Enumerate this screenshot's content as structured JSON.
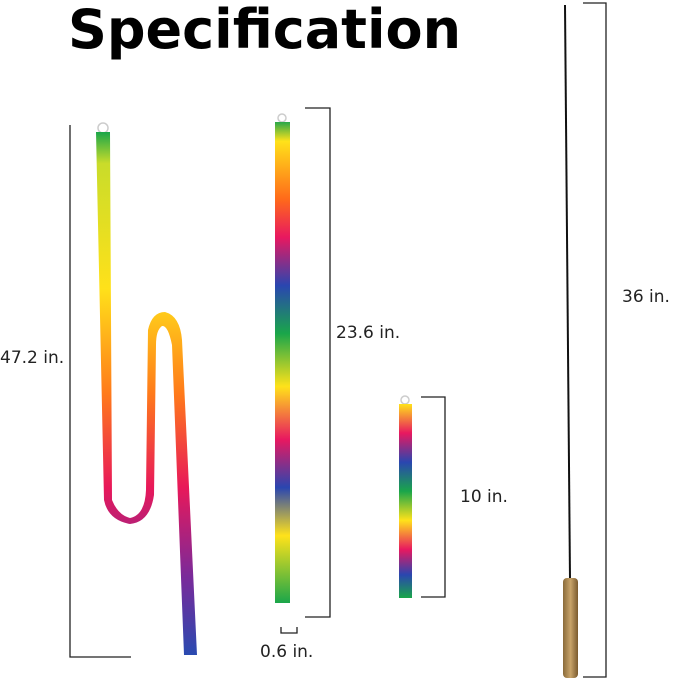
{
  "title": "Specification",
  "dimensions": [
    "47.2 in.",
    "23.6 in.",
    "0.6 in.",
    "10 in.",
    "36 in."
  ]
}
